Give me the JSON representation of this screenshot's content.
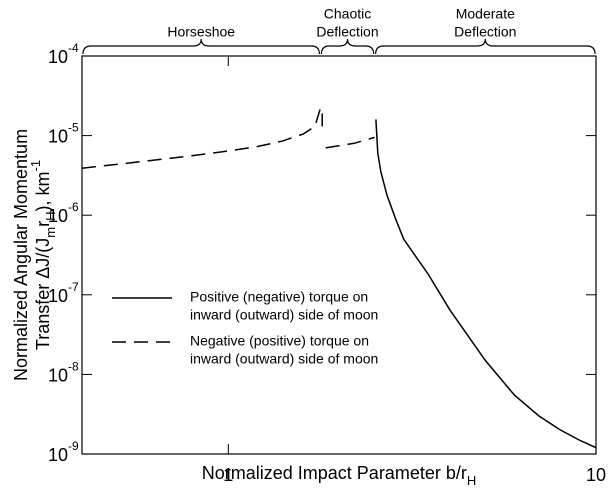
{
  "chart_data": {
    "type": "line",
    "xlabel": [
      {
        "text": "Normalized Impact Parameter b/r"
      },
      {
        "text": "H",
        "shift": "sub"
      }
    ],
    "ylabel": [
      [
        {
          "text": "Normalized Angular Momentum"
        }
      ],
      [
        {
          "text": "Transfer ΔJ/(J"
        },
        {
          "text": "m",
          "shift": "sub"
        },
        {
          "text": "r"
        },
        {
          "text": "H",
          "shift": "sub"
        },
        {
          "text": "), km"
        },
        {
          "text": "-1",
          "shift": "super"
        }
      ]
    ],
    "xscale": "log",
    "yscale": "log",
    "xlim": [
      0.4,
      10
    ],
    "ylim": [
      1e-09,
      0.0001
    ],
    "xticks": [
      1,
      10
    ],
    "yticks": [
      {
        "value": 1e-09,
        "label": "10",
        "exponent": "-9"
      },
      {
        "value": 1e-08,
        "label": "10",
        "exponent": "-8"
      },
      {
        "value": 1e-07,
        "label": "10",
        "exponent": "-7"
      },
      {
        "value": 1e-06,
        "label": "10",
        "exponent": "-6"
      },
      {
        "value": 1e-05,
        "label": "10",
        "exponent": "-5"
      },
      {
        "value": 0.0001,
        "label": "10",
        "exponent": "-4"
      }
    ],
    "regions": [
      {
        "lines": [
          "Horseshoe"
        ],
        "range": [
          0.4,
          1.78
        ]
      },
      {
        "lines": [
          "Chaotic",
          "Deflection"
        ],
        "range": [
          1.78,
          2.5
        ]
      },
      {
        "lines": [
          "Moderate",
          "Deflection"
        ],
        "range": [
          2.5,
          10
        ]
      }
    ],
    "legend": "lower left",
    "series": [
      {
        "name": [
          "Positive (negative) torque on",
          "inward (outward) side of moon"
        ],
        "color": "#000",
        "dash": "solid",
        "x": [
          2.52,
          2.55,
          2.6,
          2.7,
          2.85,
          3.0,
          3.5,
          4.0,
          5.0,
          6.0,
          7.0,
          8.0,
          9.0,
          10.0
        ],
        "values": [
          1.6e-05,
          6e-06,
          3.5e-06,
          1.8e-06,
          9e-07,
          5e-07,
          1.8e-07,
          6.5e-08,
          1.5e-08,
          5.5e-09,
          3e-09,
          2e-09,
          1.5e-09,
          1.2e-09
        ]
      },
      {
        "name": [
          "Negative (positive) torque on",
          "inward (outward) side of moon"
        ],
        "color": "#000",
        "dash": "dashed",
        "x": [
          0.4,
          0.6,
          0.8,
          1.0,
          1.2,
          1.4,
          1.6,
          1.72,
          1.78,
          null,
          1.8,
          1.8,
          null,
          1.84,
          2.2,
          2.5
        ],
        "values": [
          3.9e-06,
          4.8e-06,
          5.6e-06,
          6.4e-06,
          7.3e-06,
          8.5e-06,
          1.05e-05,
          1.3e-05,
          2.2e-05,
          null,
          1.9e-05,
          1.3e-05,
          null,
          7e-06,
          8e-06,
          9.5e-06
        ]
      }
    ]
  }
}
